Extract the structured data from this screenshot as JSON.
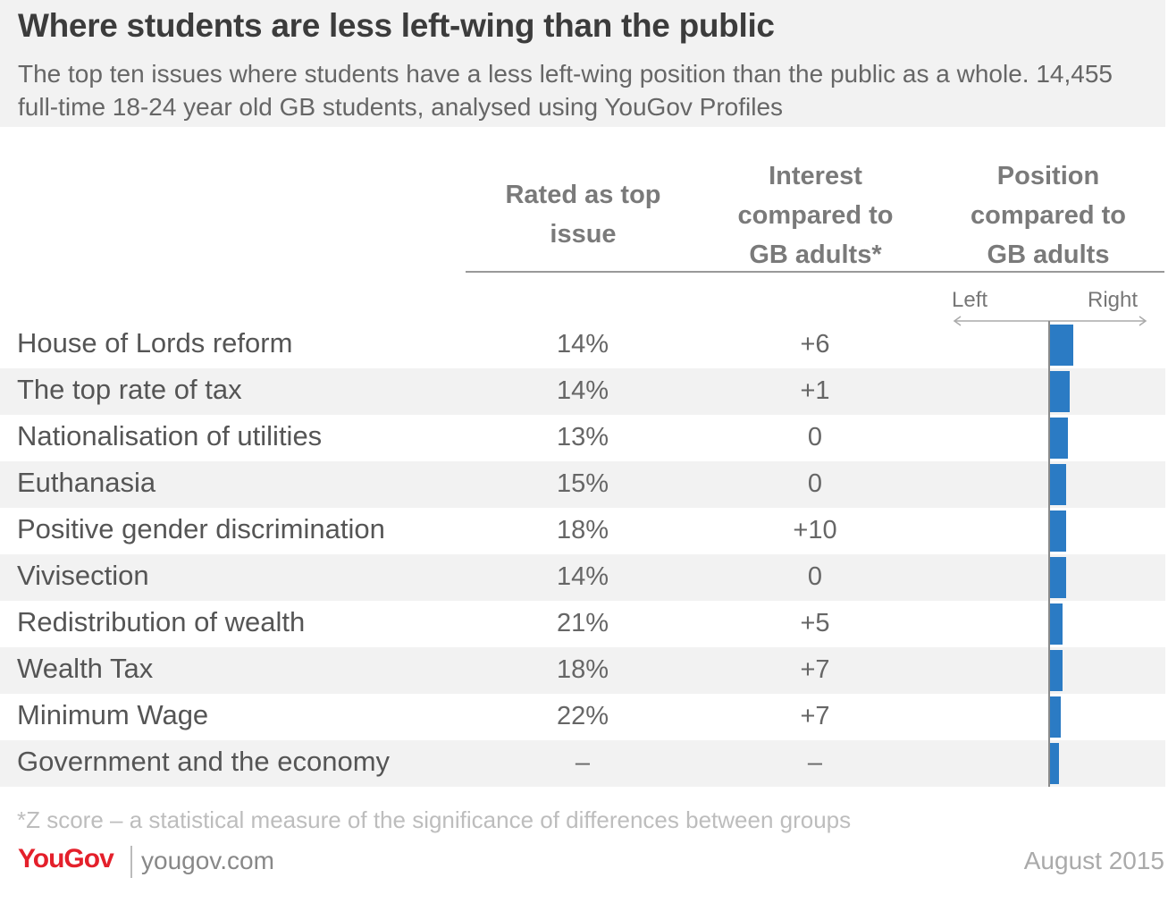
{
  "title": "Where students are less left-wing than the public",
  "subtitle": "The top ten issues where students have a less left-wing position than the public as a whole. 14,455 full-time 18-24 year old GB students, analysed using YouGov Profiles",
  "columns": {
    "rated": "Rated as top\nissue",
    "interest": "Interest\ncompared to\nGB adults*",
    "position": "Position\ncompared to\nGB adults"
  },
  "axis": {
    "left": "Left",
    "right": "Right"
  },
  "accent_color": "#2b7bc4",
  "chart_data": {
    "type": "table",
    "columns": [
      "Rated as top issue",
      "Interest compared to GB adults*",
      "Position compared to GB adults"
    ],
    "rows": [
      {
        "issue": "House of Lords reform",
        "rated": "14%",
        "interest": "+6",
        "position": 0.26
      },
      {
        "issue": "The top rate of tax",
        "rated": "14%",
        "interest": "+1",
        "position": 0.22
      },
      {
        "issue": "Nationalisation of utilities",
        "rated": "13%",
        "interest": "0",
        "position": 0.2
      },
      {
        "issue": "Euthanasia",
        "rated": "15%",
        "interest": "0",
        "position": 0.18
      },
      {
        "issue": "Positive gender discrimination",
        "rated": "18%",
        "interest": "+10",
        "position": 0.18
      },
      {
        "issue": "Vivisection",
        "rated": "14%",
        "interest": "0",
        "position": 0.18
      },
      {
        "issue": "Redistribution of wealth",
        "rated": "21%",
        "interest": "+5",
        "position": 0.14
      },
      {
        "issue": "Wealth Tax",
        "rated": "18%",
        "interest": "+7",
        "position": 0.14
      },
      {
        "issue": "Minimum Wage",
        "rated": "22%",
        "interest": "+7",
        "position": 0.12
      },
      {
        "issue": "Government and the economy",
        "rated": "–",
        "interest": "–",
        "position": 0.1
      }
    ]
  },
  "footnote": "*Z score – a statistical measure of the significance of differences between groups",
  "footer": {
    "logo": "YouGov",
    "site": "yougov.com",
    "date": "August 2015"
  }
}
